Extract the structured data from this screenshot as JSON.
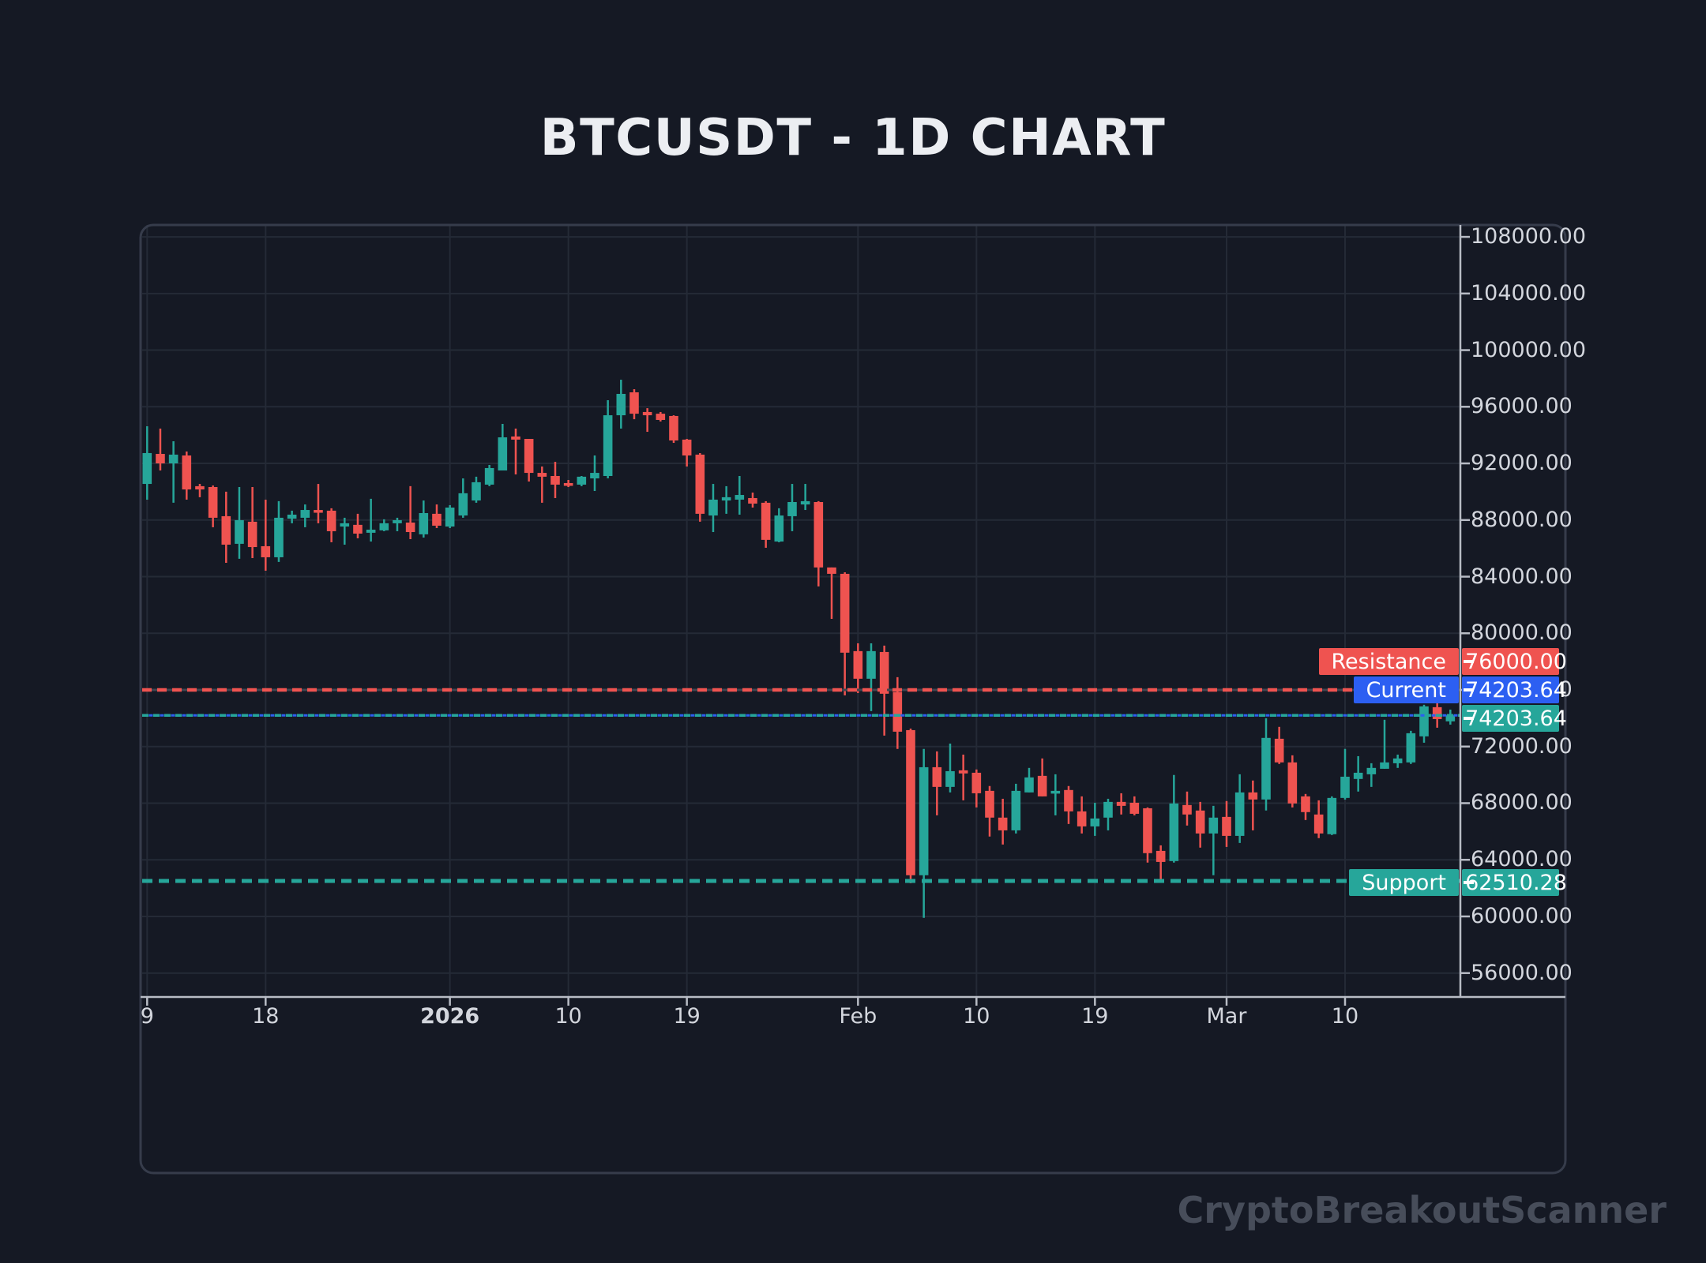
{
  "title": "BTCUSDT - 1D CHART",
  "watermark": "CryptoBreakoutScanner",
  "colors": {
    "background": "#151924",
    "container_border": "#363c4b",
    "grid": "#242a36",
    "axis": "#b8bcc5",
    "label_text": "#d3d6dd",
    "title_text": "#eceef2",
    "up": "#26a69a",
    "down": "#ef5350",
    "resistance": "#ef5350",
    "current_blue": "#2c5ff2",
    "support_teal": "#26a69a",
    "resistance_baseline": "#3f4550",
    "watermark_text": "#474d5a"
  },
  "levels": {
    "resistance": {
      "label": "Resistance",
      "value": "76000.00",
      "price": 76000
    },
    "current": {
      "label": "Current",
      "value": "74203.64",
      "price": 74203.64
    },
    "last_price": {
      "value": "74203.64",
      "price": 74203.64
    },
    "support": {
      "label": "Support",
      "value": "62510.28",
      "price": 62510.28
    }
  },
  "y_axis": {
    "labels": [
      "108000.00",
      "104000.00",
      "100000.00",
      "96000.00",
      "92000.00",
      "88000.00",
      "84000.00",
      "80000.00",
      "76000.00",
      "72000.00",
      "68000.00",
      "64000.00",
      "60000.00",
      "56000.00"
    ]
  },
  "x_axis": {
    "ticks": [
      {
        "label": "9",
        "candle": 1,
        "bold": false
      },
      {
        "label": "18",
        "candle": 10,
        "bold": false
      },
      {
        "label": "2026",
        "candle": 24,
        "bold": true
      },
      {
        "label": "10",
        "candle": 33,
        "bold": false
      },
      {
        "label": "19",
        "candle": 42,
        "bold": false
      },
      {
        "label": "Feb",
        "candle": 55,
        "bold": false
      },
      {
        "label": "10",
        "candle": 64,
        "bold": false
      },
      {
        "label": "19",
        "candle": 73,
        "bold": false
      },
      {
        "label": "Mar",
        "candle": 83,
        "bold": false
      },
      {
        "label": "10",
        "candle": 92,
        "bold": false
      }
    ]
  },
  "chart_data": {
    "type": "candlestick",
    "title": "BTCUSDT - 1D CHART",
    "timeframe": "1D",
    "symbol": "BTCUSDT",
    "ylim": [
      54300,
      108900
    ],
    "y_tick_step": 4000,
    "grid": true,
    "levels": {
      "resistance": 76000.0,
      "current": 74203.64,
      "support": 62510.28
    },
    "candles_ohlc": [
      [
        90550,
        94620,
        89440,
        92730
      ],
      [
        92670,
        94460,
        91500,
        92000
      ],
      [
        92000,
        93560,
        89220,
        92620
      ],
      [
        92560,
        92840,
        89440,
        90160
      ],
      [
        90390,
        90550,
        89610,
        90160
      ],
      [
        90330,
        90440,
        87490,
        88160
      ],
      [
        88270,
        90000,
        84980,
        86260
      ],
      [
        86320,
        90330,
        85260,
        87990
      ],
      [
        87880,
        90330,
        85310,
        86090
      ],
      [
        86150,
        89440,
        84420,
        85370
      ],
      [
        85370,
        89330,
        85040,
        88160
      ],
      [
        88100,
        88660,
        87770,
        88380
      ],
      [
        88160,
        89100,
        87490,
        88710
      ],
      [
        88710,
        90550,
        87770,
        88550
      ],
      [
        88660,
        88830,
        86430,
        87210
      ],
      [
        87540,
        88160,
        86260,
        87770
      ],
      [
        87660,
        88440,
        86710,
        87040
      ],
      [
        87100,
        89500,
        86480,
        87320
      ],
      [
        87270,
        88050,
        87210,
        87770
      ],
      [
        87770,
        88160,
        87210,
        87990
      ],
      [
        87820,
        90390,
        86650,
        87150
      ],
      [
        86990,
        89380,
        86760,
        88490
      ],
      [
        88440,
        89100,
        87430,
        87600
      ],
      [
        87540,
        89050,
        87430,
        88880
      ],
      [
        88320,
        90940,
        88160,
        89890
      ],
      [
        89380,
        91060,
        89220,
        90670
      ],
      [
        90500,
        91890,
        90390,
        91670
      ],
      [
        91500,
        94790,
        91500,
        93840
      ],
      [
        93900,
        94460,
        91220,
        93680
      ],
      [
        93730,
        93730,
        90720,
        91330
      ],
      [
        91330,
        91780,
        89220,
        91060
      ],
      [
        91110,
        92110,
        89550,
        90500
      ],
      [
        90610,
        90830,
        90330,
        90440
      ],
      [
        90500,
        91110,
        90390,
        91060
      ],
      [
        90940,
        92560,
        90050,
        91330
      ],
      [
        91110,
        96460,
        90940,
        95400
      ],
      [
        95400,
        97910,
        94460,
        96910
      ],
      [
        97020,
        97240,
        95120,
        95510
      ],
      [
        95630,
        95900,
        94230,
        95400
      ],
      [
        95510,
        95630,
        94960,
        95070
      ],
      [
        95350,
        95400,
        93450,
        93620
      ],
      [
        93680,
        93730,
        91780,
        92560
      ],
      [
        92620,
        92730,
        87880,
        88440
      ],
      [
        88320,
        90550,
        87150,
        89440
      ],
      [
        89380,
        90390,
        88440,
        89610
      ],
      [
        89440,
        91110,
        88380,
        89770
      ],
      [
        89550,
        89940,
        88880,
        89160
      ],
      [
        89220,
        89330,
        86040,
        86600
      ],
      [
        86480,
        88830,
        86430,
        88320
      ],
      [
        88270,
        90550,
        87210,
        89270
      ],
      [
        89100,
        90550,
        88710,
        89330
      ],
      [
        89270,
        89330,
        83310,
        84650
      ],
      [
        84650,
        84650,
        81020,
        84200
      ],
      [
        84200,
        84310,
        75620,
        78630
      ],
      [
        78740,
        79290,
        75780,
        76790
      ],
      [
        76790,
        79290,
        74500,
        78740
      ],
      [
        78680,
        79130,
        72770,
        75730
      ],
      [
        75840,
        76900,
        71830,
        73050
      ],
      [
        73160,
        73270,
        62350,
        62910
      ],
      [
        62910,
        71830,
        59900,
        70540
      ],
      [
        70540,
        71660,
        67140,
        69150
      ],
      [
        69150,
        72210,
        68760,
        70260
      ],
      [
        70320,
        71430,
        68200,
        70100
      ],
      [
        70150,
        70380,
        67700,
        68700
      ],
      [
        68870,
        69210,
        65640,
        66980
      ],
      [
        66980,
        68310,
        65080,
        66080
      ],
      [
        66080,
        69370,
        65860,
        68870
      ],
      [
        68760,
        70490,
        68760,
        69820
      ],
      [
        69930,
        71160,
        68480,
        68480
      ],
      [
        68700,
        70040,
        67140,
        68870
      ],
      [
        68930,
        69210,
        66530,
        67420
      ],
      [
        67420,
        68480,
        65860,
        66360
      ],
      [
        66360,
        68030,
        65690,
        66920
      ],
      [
        66980,
        68310,
        66080,
        68090
      ],
      [
        68090,
        68700,
        67200,
        67810
      ],
      [
        68030,
        68480,
        67140,
        67250
      ],
      [
        67640,
        67700,
        63800,
        64470
      ],
      [
        64630,
        65020,
        62400,
        63850
      ],
      [
        63910,
        69990,
        63800,
        67980
      ],
      [
        67870,
        68820,
        66420,
        67200
      ],
      [
        67480,
        68090,
        64860,
        65860
      ],
      [
        65860,
        67810,
        62910,
        66980
      ],
      [
        67030,
        68150,
        64910,
        65690
      ],
      [
        65690,
        70040,
        65190,
        68760
      ],
      [
        68760,
        69600,
        66080,
        68260
      ],
      [
        68260,
        74000,
        67480,
        72610
      ],
      [
        72550,
        73390,
        70770,
        70880
      ],
      [
        70880,
        71380,
        67700,
        67980
      ],
      [
        68480,
        68650,
        66810,
        67370
      ],
      [
        67200,
        68200,
        65530,
        65860
      ],
      [
        65810,
        68480,
        65750,
        68370
      ],
      [
        68370,
        71830,
        68260,
        69870
      ],
      [
        69710,
        71320,
        68820,
        70150
      ],
      [
        70040,
        70820,
        69150,
        70490
      ],
      [
        70430,
        73890,
        70430,
        70880
      ],
      [
        70820,
        71430,
        70490,
        71160
      ],
      [
        70880,
        73110,
        70770,
        72940
      ],
      [
        72720,
        74950,
        72270,
        74840
      ],
      [
        74780,
        75840,
        73330,
        73940
      ],
      [
        73780,
        74610,
        73550,
        74203.64
      ]
    ]
  }
}
